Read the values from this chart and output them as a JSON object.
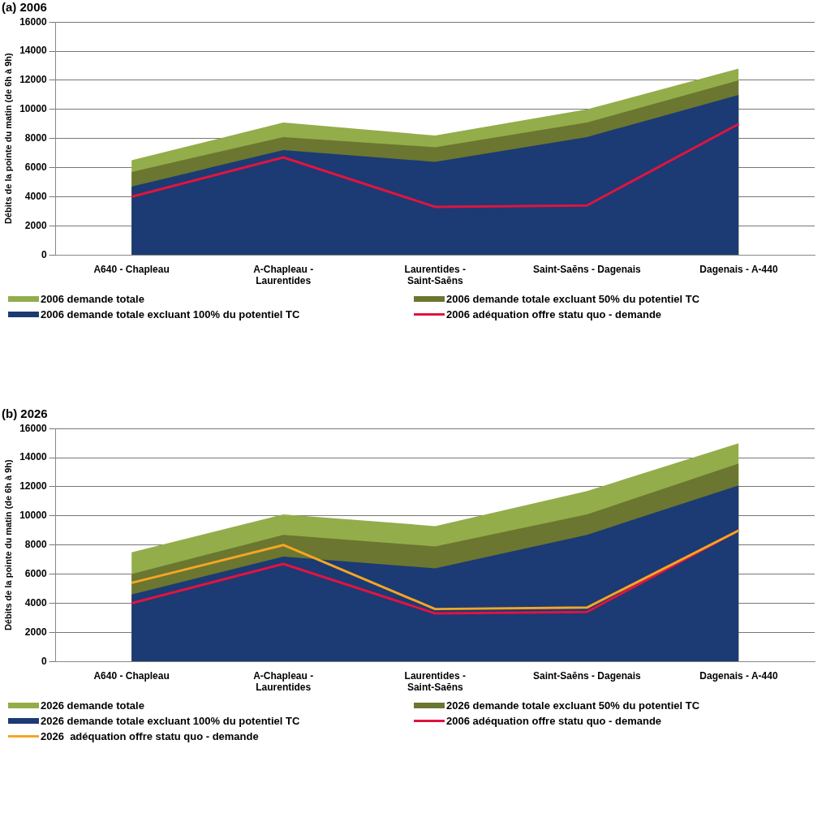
{
  "chart_data": [
    {
      "type": "area",
      "title": "(a) 2006",
      "ylabel": "Débits de la pointe du matin (de 6h à 9h)",
      "categories": [
        "A640 - Chapleau",
        "A-Chapleau - Laurentides",
        "Laurentides - Saint-Saēns",
        "Saint-Saēns - Dagenais",
        "Dagenais - A-440"
      ],
      "series": [
        {
          "name": "2006 demande totale",
          "color": "#93ad4a",
          "values": [
            6500,
            9100,
            8200,
            10000,
            12800
          ]
        },
        {
          "name": "2006 demande totale excluant 50% du potentiel TC",
          "color": "#6b7630",
          "values": [
            5700,
            8100,
            7400,
            9100,
            12000
          ]
        },
        {
          "name": "2006 demande totale excluant 100% du potentiel TC",
          "color": "#1c3a73",
          "values": [
            4700,
            7200,
            6400,
            8100,
            11000
          ]
        },
        {
          "name": "2006 adéquation offre statu quo - demande",
          "type": "line",
          "color": "#e01440",
          "values": [
            4000,
            6700,
            3300,
            3400,
            9000
          ]
        }
      ],
      "ylim": [
        0,
        16000
      ],
      "yticks": [
        0,
        2000,
        4000,
        6000,
        8000,
        10000,
        12000,
        14000,
        16000
      ],
      "grid": "y",
      "legend": "bottom",
      "marker": "none"
    },
    {
      "type": "area",
      "title": "(b) 2026",
      "ylabel": "Débits de la pointe du matin (de 6h à 9h)",
      "categories": [
        "A640 - Chapleau",
        "A-Chapleau - Laurentides",
        "Laurentides - Saint-Saēns",
        "Saint-Saēns - Dagenais",
        "Dagenais - A-440"
      ],
      "series": [
        {
          "name": "2026 demande totale",
          "color": "#93ad4a",
          "values": [
            7500,
            10100,
            9300,
            11700,
            15000
          ]
        },
        {
          "name": "2026 demande totale excluant 50% du potentiel TC",
          "color": "#6b7630",
          "values": [
            6000,
            8700,
            7900,
            10100,
            13600
          ]
        },
        {
          "name": "2026 demande totale excluant 100% du potentiel TC",
          "color": "#1c3a73",
          "values": [
            4600,
            7200,
            6400,
            8700,
            12100
          ]
        },
        {
          "name": "2006 adéquation offre statu quo - demande",
          "type": "line",
          "color": "#e01440",
          "values": [
            4000,
            6700,
            3300,
            3400,
            9000
          ]
        },
        {
          "name": "2026  adéquation offre statu quo - demande",
          "type": "line",
          "color": "#f5a623",
          "values": [
            5400,
            8000,
            3600,
            3700,
            9000
          ]
        }
      ],
      "ylim": [
        0,
        16000
      ],
      "yticks": [
        0,
        2000,
        4000,
        6000,
        8000,
        10000,
        12000,
        14000,
        16000
      ],
      "grid": "y",
      "legend": "bottom",
      "marker": "none"
    }
  ]
}
